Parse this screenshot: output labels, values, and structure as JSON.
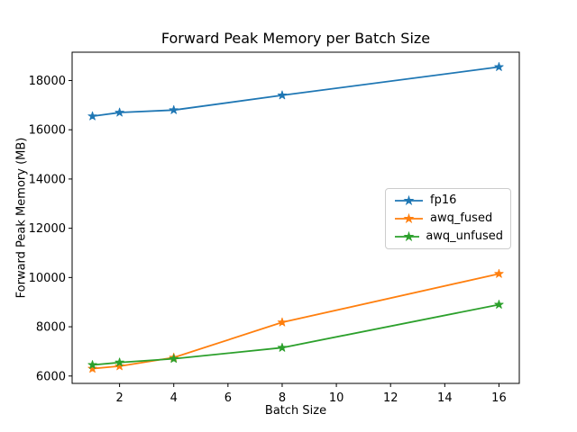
{
  "chart_data": {
    "type": "line",
    "title": "Forward Peak Memory per Batch Size",
    "xlabel": "Batch Size",
    "ylabel": "Forward Peak Memory (MB)",
    "x": [
      1,
      2,
      4,
      8,
      16
    ],
    "series": [
      {
        "name": "fp16",
        "color": "#1f77b4",
        "marker": "star",
        "values": [
          16550,
          16700,
          16800,
          17400,
          18550
        ]
      },
      {
        "name": "awq_fused",
        "color": "#ff7f0e",
        "marker": "star",
        "values": [
          6300,
          6400,
          6750,
          8180,
          10150
        ]
      },
      {
        "name": "awq_unfused",
        "color": "#2ca02c",
        "marker": "star",
        "values": [
          6450,
          6550,
          6700,
          7150,
          8900
        ]
      }
    ],
    "xticks": [
      2,
      4,
      6,
      8,
      10,
      12,
      14,
      16
    ],
    "yticks": [
      6000,
      8000,
      10000,
      12000,
      14000,
      16000,
      18000
    ],
    "xlim": [
      0.25,
      16.75
    ],
    "ylim": [
      5700,
      19150
    ],
    "grid": false,
    "legend_position": "center right",
    "axis_color": "#000000",
    "background_color": "#ffffff"
  }
}
